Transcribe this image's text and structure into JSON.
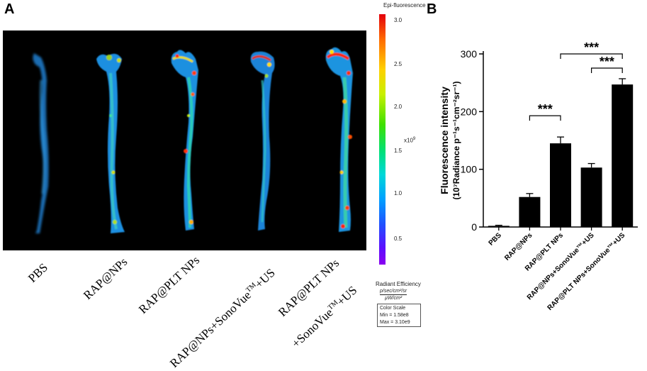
{
  "panels": {
    "a": "A",
    "b": "B"
  },
  "panel_a": {
    "group_labels": [
      {
        "line1": "PBS",
        "line2": ""
      },
      {
        "line1": "RAP@NPs",
        "line2": ""
      },
      {
        "line1": "RAP@PLT NPs",
        "line2": ""
      },
      {
        "line1": "RAP@NPs+SonoVue",
        "sup": "TM",
        "tail": "+US",
        "line2": ""
      },
      {
        "line1": "RAP@PLT NPs",
        "line2": "+SonoVue",
        "sup": "TM",
        "tail": "+US"
      }
    ],
    "colorbar": {
      "title": "Epi-fluorescence",
      "ticks": [
        "3.0",
        "2.5",
        "2.0",
        "1.5",
        "1.0",
        "0.5"
      ],
      "exponent_base": "x10",
      "exponent": "9",
      "radiant_label": "Radiant Efficiency",
      "radiant_units_num": "p/sec/cm²/sr",
      "radiant_units_den": "µW/cm²",
      "color_scale_title": "Color Scale",
      "min": "Min = 1.58e8",
      "max": "Max = 3.10e9"
    }
  },
  "chart_data": {
    "type": "bar",
    "categories": [
      "PBS",
      "RAP@NPs",
      "RAP@PLT NPs",
      "RAP@NPs+SonoVue™+US",
      "RAP@PLT NPs+SonoVue™+US"
    ],
    "values": [
      2,
      52,
      145,
      103,
      247
    ],
    "errors": [
      1,
      6,
      11,
      7,
      10
    ],
    "ylabel_line1": "Fluorescence intensity",
    "ylabel_line2": "(10⁷Radiance p⁻¹s⁻¹cm⁻²sr⁻¹)",
    "ylim": [
      0,
      300
    ],
    "yticks": [
      "0",
      "100",
      "200",
      "300"
    ],
    "bar_color": "#000000",
    "significance": [
      {
        "from": 1,
        "to": 2,
        "label": "***"
      },
      {
        "from": 2,
        "to": 4,
        "label": "***"
      },
      {
        "from": 3,
        "to": 4,
        "label": "***"
      }
    ]
  }
}
